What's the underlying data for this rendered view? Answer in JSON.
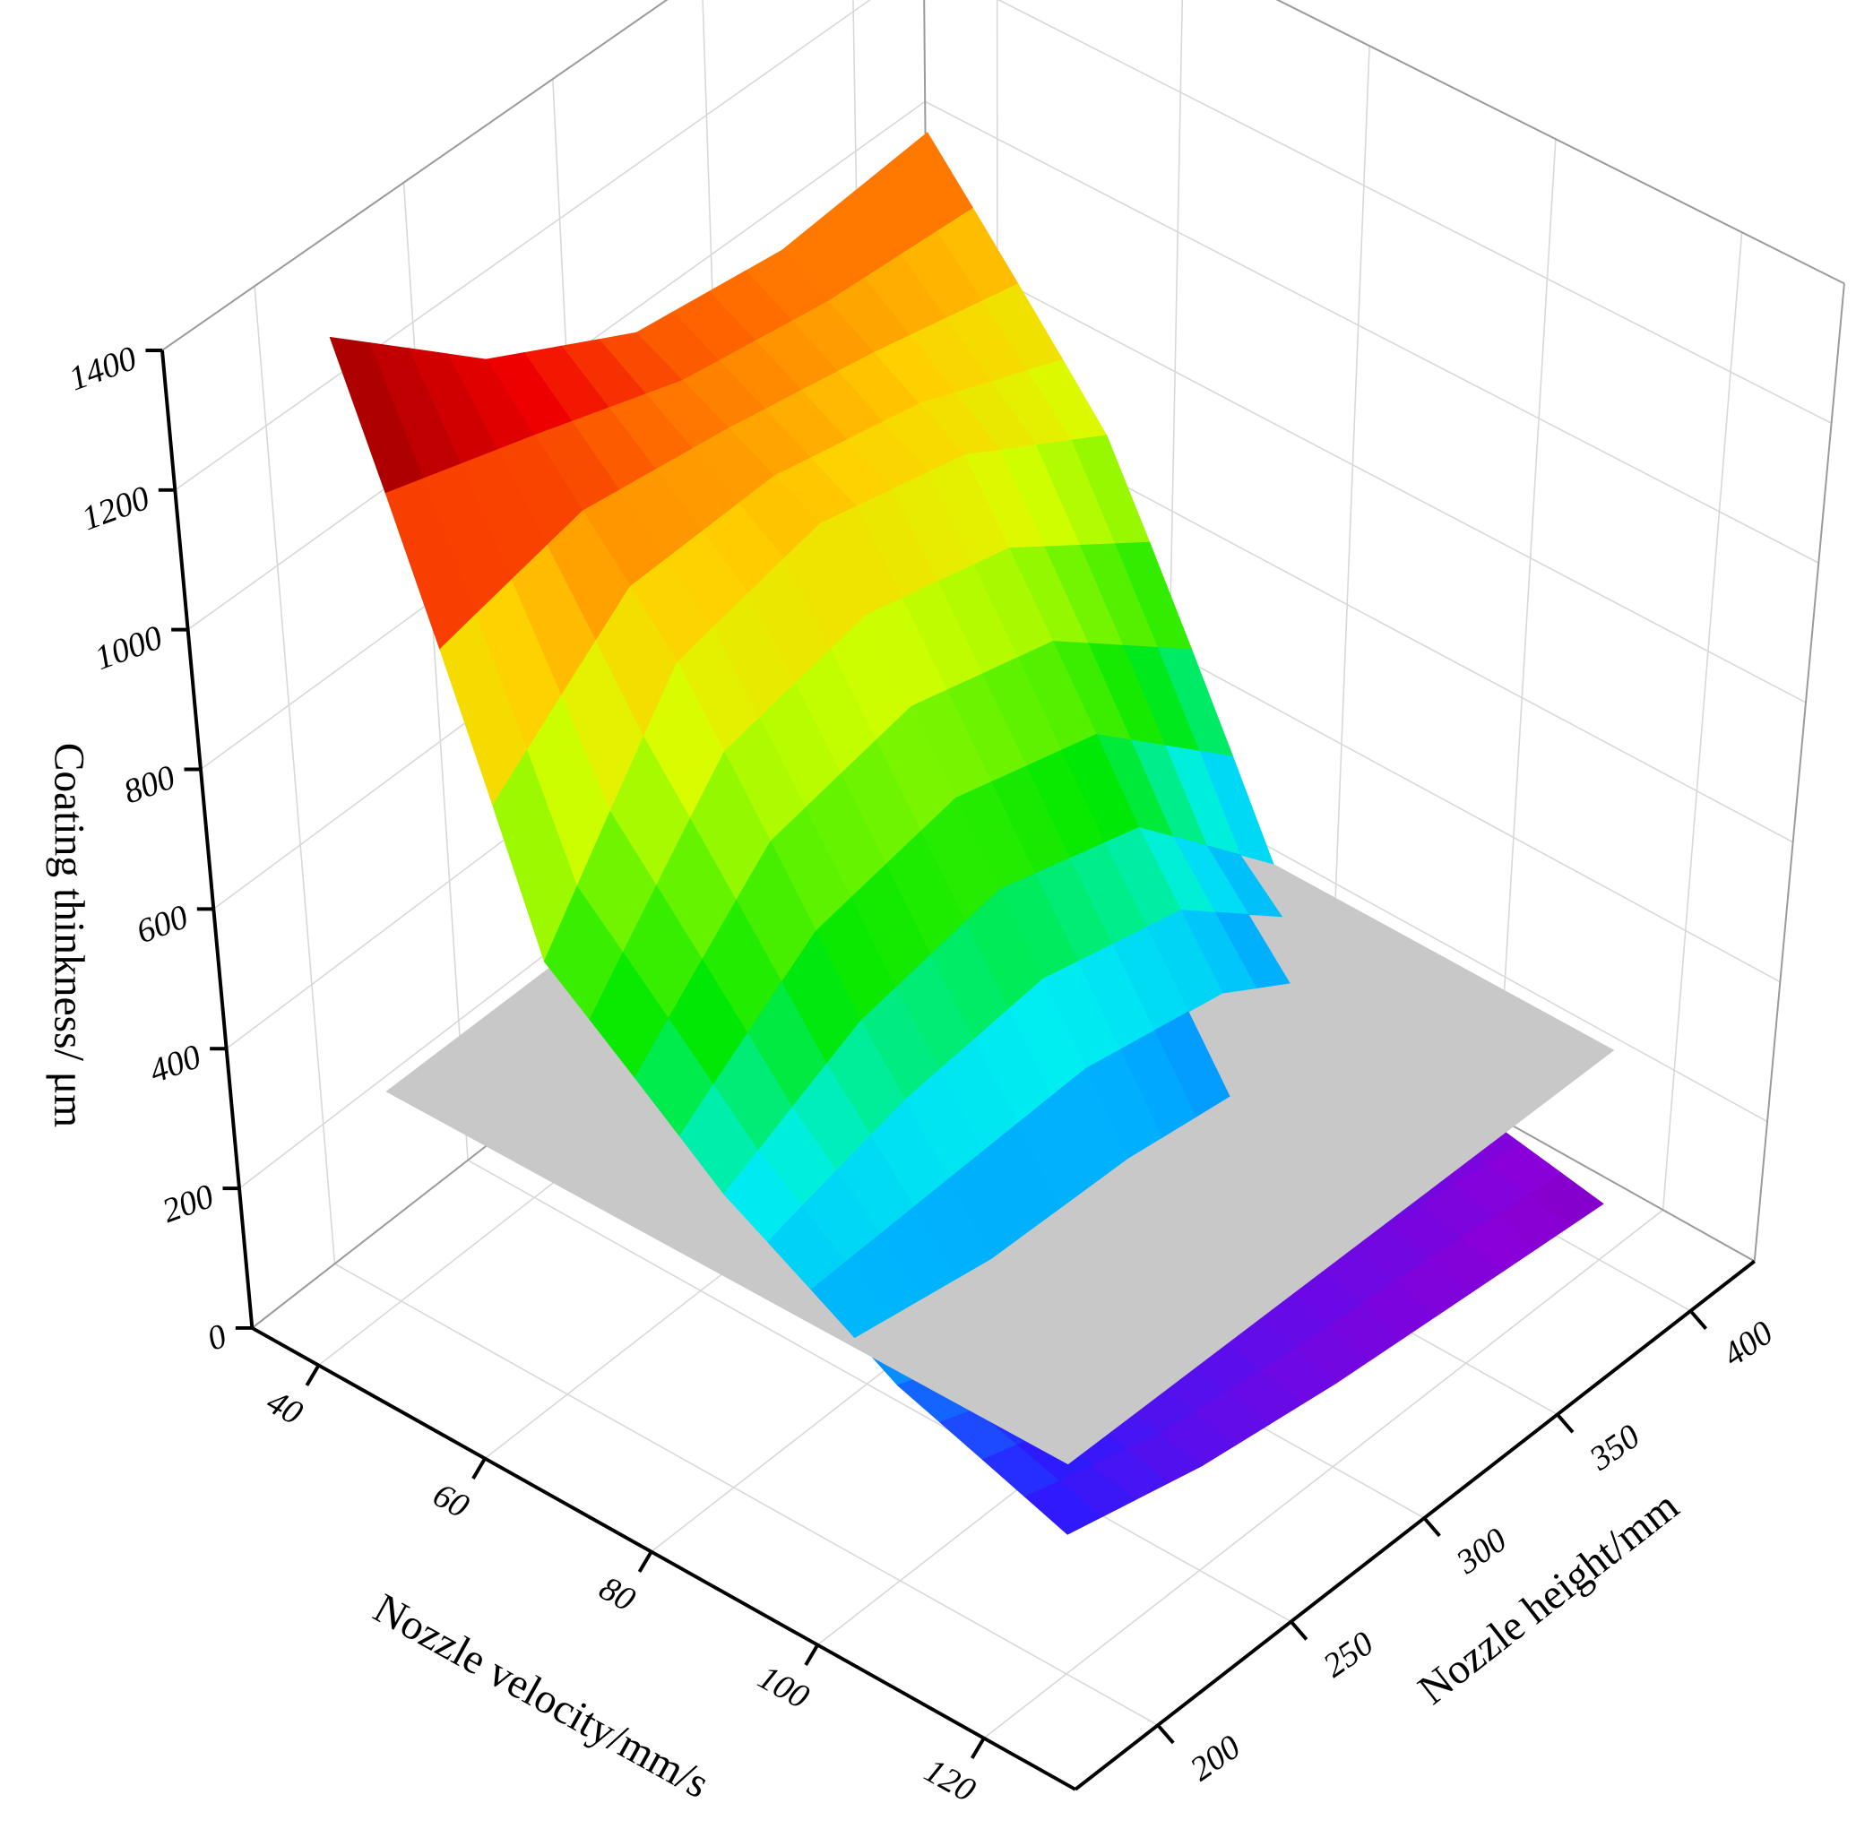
{
  "chart_data": {
    "type": "surface3d",
    "z_label": "Coating thinkness/ μm",
    "x_label": "Nozzle velocity/mm/s",
    "y_label": "Nozzle height/mm",
    "x": [
      40,
      60,
      80,
      100,
      120
    ],
    "y": [
      200,
      250,
      300,
      350,
      400
    ],
    "z": [
      [
        1380,
        1200,
        1090,
        1060,
        1080
      ],
      [
        620,
        900,
        950,
        900,
        780
      ],
      [
        420,
        520,
        560,
        500,
        300
      ],
      [
        280,
        200,
        180,
        160,
        120
      ],
      [
        200,
        150,
        120,
        100,
        80
      ]
    ],
    "plane_z": 300,
    "plane_color": "#c8c8c8",
    "xlim": [
      32,
      131
    ],
    "ylim": [
      169,
      424
    ],
    "zlim": [
      0,
      1400
    ],
    "xticks": [
      40,
      60,
      80,
      100,
      120
    ],
    "yticks": [
      200,
      250,
      300,
      350,
      400
    ],
    "zticks": [
      0,
      200,
      400,
      600,
      800,
      1000,
      1200,
      1400
    ],
    "grid": true
  }
}
